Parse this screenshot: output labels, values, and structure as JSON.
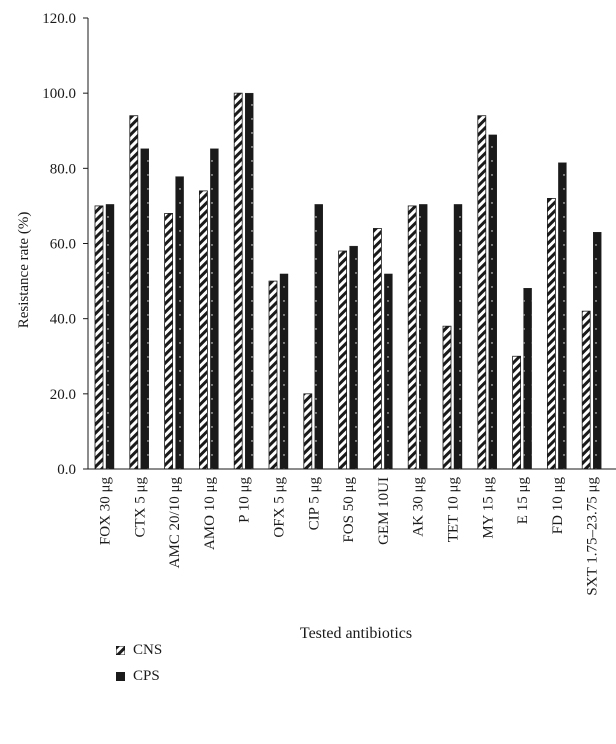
{
  "chart_data": {
    "type": "bar",
    "xlabel": "Tested antibiotics",
    "ylabel": "Resistance rate (%)",
    "ylim": [
      0,
      120
    ],
    "yticks": [
      "0.0",
      "20.0",
      "40.0",
      "60.0",
      "80.0",
      "100.0",
      "120.0"
    ],
    "categories": [
      "FOX 30 μg",
      "CTX 5 μg",
      "AMC 20/10 μg",
      "AMO 10 μg",
      "P 10 μg",
      "OFX 5 μg",
      "CIP 5 μg",
      "FOS 50 μg",
      "GEM 10UI",
      "AK 30 μg",
      "TET 10 μg",
      "MY 15 μg",
      "E 15 μg",
      "FD 10 μg",
      "SXT 1.75–23.75 μg"
    ],
    "series": [
      {
        "name": "CNS",
        "values": [
          70,
          94,
          68,
          74,
          100,
          50,
          20,
          58,
          64,
          70,
          38,
          94,
          30,
          72,
          42
        ]
      },
      {
        "name": "CPS",
        "values": [
          70.4,
          85.2,
          77.8,
          85.2,
          100,
          51.9,
          70.4,
          59.3,
          51.9,
          70.4,
          70.4,
          88.9,
          48.1,
          81.5,
          63
        ]
      }
    ],
    "legend_position": "bottom-left",
    "grid": false
  },
  "colors": {
    "cns_fill": "#ffffff",
    "cns_stripe": "#1a1a1a",
    "cps_fill": "#1a1a1a",
    "axis": "#1a1a1a"
  }
}
